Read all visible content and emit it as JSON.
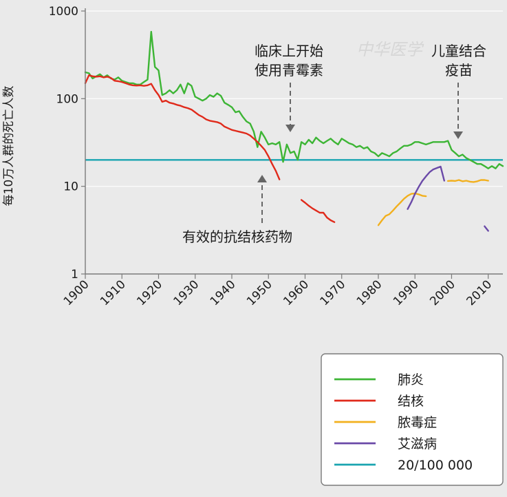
{
  "chart_data": {
    "type": "line",
    "ylabel": "每10万人群的死亡人数",
    "xlabel": "",
    "yscale": "log",
    "ylim": [
      1,
      1000
    ],
    "xlim": [
      1900,
      2014
    ],
    "y_ticks": [
      "1",
      "10",
      "100",
      "1000"
    ],
    "y_tick_values": [
      1,
      10,
      100,
      1000
    ],
    "x_ticks": [
      "1900",
      "1910",
      "1920",
      "1930",
      "1940",
      "1950",
      "1960",
      "1970",
      "1980",
      "1990",
      "2000",
      "2010"
    ],
    "x_tick_values": [
      1900,
      1910,
      1920,
      1930,
      1940,
      1950,
      1960,
      1970,
      1980,
      1990,
      2000,
      2010
    ],
    "grid": "horizontal",
    "legend_position": "bottom-right",
    "reference_line": {
      "label": "20/100 000",
      "value": 20,
      "color": "#19a4b0"
    },
    "annotations": [
      {
        "lines": [
          "临床上开始",
          "使用青霉素"
        ],
        "x": 1955,
        "arrow": "down"
      },
      {
        "lines": [
          "儿童结合",
          "疫苗"
        ],
        "x": 2002,
        "arrow": "down"
      },
      {
        "lines": [
          "有效的抗结核药物"
        ],
        "x": 1948,
        "arrow": "up"
      }
    ],
    "watermark": "中华医学",
    "series": [
      {
        "name": "肺炎",
        "color": "#3db535",
        "segments": [
          [
            [
              1900,
              200
            ],
            [
              1901,
              195
            ],
            [
              1902,
              170
            ],
            [
              1903,
              180
            ],
            [
              1904,
              190
            ],
            [
              1905,
              175
            ],
            [
              1906,
              185
            ],
            [
              1907,
              170
            ],
            [
              1908,
              165
            ],
            [
              1909,
              175
            ],
            [
              1910,
              160
            ],
            [
              1911,
              155
            ],
            [
              1912,
              150
            ],
            [
              1913,
              150
            ],
            [
              1914,
              145
            ],
            [
              1915,
              145
            ],
            [
              1916,
              155
            ],
            [
              1917,
              165
            ],
            [
              1918,
              580
            ],
            [
              1919,
              230
            ],
            [
              1920,
              210
            ],
            [
              1921,
              110
            ],
            [
              1922,
              115
            ],
            [
              1923,
              125
            ],
            [
              1924,
              115
            ],
            [
              1925,
              125
            ],
            [
              1926,
              145
            ],
            [
              1927,
              115
            ],
            [
              1928,
              150
            ],
            [
              1929,
              140
            ],
            [
              1930,
              105
            ],
            [
              1931,
              100
            ],
            [
              1932,
              95
            ],
            [
              1933,
              100
            ],
            [
              1934,
              110
            ],
            [
              1935,
              105
            ],
            [
              1936,
              115
            ],
            [
              1937,
              108
            ],
            [
              1938,
              90
            ],
            [
              1939,
              85
            ],
            [
              1940,
              80
            ],
            [
              1941,
              70
            ],
            [
              1942,
              72
            ],
            [
              1943,
              62
            ],
            [
              1944,
              55
            ],
            [
              1945,
              52
            ],
            [
              1946,
              42
            ],
            [
              1947,
              28
            ],
            [
              1948,
              42
            ],
            [
              1949,
              36
            ],
            [
              1950,
              30
            ],
            [
              1951,
              31
            ],
            [
              1952,
              30
            ],
            [
              1953,
              32
            ],
            [
              1954,
              19
            ],
            [
              1955,
              30
            ],
            [
              1956,
              24
            ],
            [
              1957,
              25
            ],
            [
              1958,
              20
            ],
            [
              1959,
              32
            ],
            [
              1960,
              30
            ],
            [
              1961,
              34
            ],
            [
              1962,
              31
            ],
            [
              1963,
              36
            ],
            [
              1964,
              33
            ],
            [
              1965,
              31
            ],
            [
              1966,
              33
            ],
            [
              1967,
              35
            ],
            [
              1968,
              32
            ],
            [
              1969,
              30
            ],
            [
              1970,
              35
            ],
            [
              1971,
              33
            ],
            [
              1972,
              31
            ],
            [
              1973,
              30
            ],
            [
              1974,
              28
            ],
            [
              1975,
              29
            ],
            [
              1976,
              27
            ],
            [
              1977,
              28
            ],
            [
              1978,
              25
            ],
            [
              1979,
              24
            ],
            [
              1980,
              22
            ],
            [
              1981,
              24
            ],
            [
              1982,
              23
            ],
            [
              1983,
              22
            ],
            [
              1984,
              24
            ],
            [
              1985,
              25
            ],
            [
              1986,
              27
            ],
            [
              1987,
              29
            ],
            [
              1988,
              29
            ],
            [
              1989,
              30
            ],
            [
              1990,
              32
            ],
            [
              1991,
              32
            ],
            [
              1992,
              31
            ],
            [
              1993,
              30
            ],
            [
              1994,
              31
            ],
            [
              1995,
              32
            ],
            [
              1996,
              32
            ],
            [
              1997,
              32
            ],
            [
              1998,
              32
            ],
            [
              1999,
              33
            ],
            [
              2000,
              26
            ],
            [
              2001,
              24
            ],
            [
              2002,
              22
            ],
            [
              2003,
              23
            ],
            [
              2004,
              21
            ],
            [
              2005,
              20
            ],
            [
              2006,
              19
            ],
            [
              2007,
              18
            ],
            [
              2008,
              18
            ],
            [
              2009,
              17
            ],
            [
              2010,
              16
            ],
            [
              2011,
              17
            ],
            [
              2012,
              16
            ],
            [
              2013,
              18
            ],
            [
              2014,
              17
            ]
          ]
        ]
      },
      {
        "name": "结核",
        "color": "#e02a1b",
        "segments": [
          [
            [
              1900,
              150
            ],
            [
              1901,
              185
            ],
            [
              1902,
              180
            ],
            [
              1903,
              178
            ],
            [
              1904,
              180
            ],
            [
              1905,
              175
            ],
            [
              1906,
              178
            ],
            [
              1907,
              172
            ],
            [
              1908,
              160
            ],
            [
              1909,
              158
            ],
            [
              1910,
              155
            ],
            [
              1911,
              150
            ],
            [
              1912,
              145
            ],
            [
              1913,
              142
            ],
            [
              1914,
              141
            ],
            [
              1915,
              142
            ],
            [
              1916,
              140
            ],
            [
              1917,
              142
            ],
            [
              1918,
              148
            ],
            [
              1919,
              125
            ],
            [
              1920,
              110
            ],
            [
              1921,
              92
            ],
            [
              1922,
              95
            ],
            [
              1923,
              90
            ],
            [
              1924,
              88
            ],
            [
              1925,
              85
            ],
            [
              1926,
              83
            ],
            [
              1927,
              80
            ],
            [
              1928,
              78
            ],
            [
              1929,
              75
            ],
            [
              1930,
              70
            ],
            [
              1931,
              65
            ],
            [
              1932,
              62
            ],
            [
              1933,
              58
            ],
            [
              1934,
              56
            ],
            [
              1935,
              55
            ],
            [
              1936,
              54
            ],
            [
              1937,
              52
            ],
            [
              1938,
              48
            ],
            [
              1939,
              46
            ],
            [
              1940,
              44
            ],
            [
              1941,
              43
            ],
            [
              1942,
              42
            ],
            [
              1943,
              41
            ],
            [
              1944,
              40
            ],
            [
              1945,
              38
            ],
            [
              1946,
              35
            ],
            [
              1947,
              32
            ],
            [
              1948,
              29
            ],
            [
              1949,
              26
            ],
            [
              1950,
              22
            ],
            [
              1951,
              18
            ],
            [
              1952,
              15
            ],
            [
              1953,
              12
            ]
          ],
          [
            [
              1959,
              7
            ],
            [
              1960,
              6.5
            ],
            [
              1961,
              6
            ],
            [
              1962,
              5.6
            ],
            [
              1963,
              5.3
            ],
            [
              1964,
              5
            ],
            [
              1965,
              5
            ],
            [
              1966,
              4.4
            ],
            [
              1967,
              4.1
            ],
            [
              1968,
              3.9
            ]
          ]
        ]
      },
      {
        "name": "脓毒症",
        "color": "#f2b01e",
        "segments": [
          [
            [
              1980,
              3.6
            ],
            [
              1981,
              4.1
            ],
            [
              1982,
              4.6
            ],
            [
              1983,
              4.8
            ],
            [
              1984,
              5.3
            ],
            [
              1985,
              5.9
            ],
            [
              1986,
              6.5
            ],
            [
              1987,
              7.2
            ],
            [
              1988,
              7.8
            ],
            [
              1989,
              8.2
            ],
            [
              1990,
              8.3
            ],
            [
              1991,
              8.1
            ],
            [
              1992,
              7.8
            ],
            [
              1993,
              7.7
            ]
          ],
          [
            [
              1999,
              11.5
            ],
            [
              2000,
              11.6
            ],
            [
              2001,
              11.5
            ],
            [
              2002,
              11.8
            ],
            [
              2003,
              11.4
            ],
            [
              2004,
              11.6
            ],
            [
              2005,
              11.3
            ],
            [
              2006,
              11.2
            ],
            [
              2007,
              11.4
            ],
            [
              2008,
              11.8
            ],
            [
              2009,
              11.8
            ],
            [
              2010,
              11.6
            ]
          ]
        ]
      },
      {
        "name": "艾滋病",
        "color": "#6a49a8",
        "segments": [
          [
            [
              1988,
              5.5
            ],
            [
              1989,
              6.6
            ],
            [
              1990,
              8.2
            ],
            [
              1991,
              9.8
            ],
            [
              1992,
              11.5
            ],
            [
              1993,
              13
            ],
            [
              1994,
              14.5
            ],
            [
              1995,
              15.6
            ],
            [
              1996,
              16.2
            ],
            [
              1997,
              16.8
            ],
            [
              1998,
              11.6
            ]
          ],
          [
            [
              2009,
              3.5
            ],
            [
              2010,
              3.1
            ]
          ]
        ]
      }
    ],
    "legend": [
      {
        "label": "肺炎",
        "color": "#3db535"
      },
      {
        "label": "结核",
        "color": "#e02a1b"
      },
      {
        "label": "脓毒症",
        "color": "#f2b01e"
      },
      {
        "label": "艾滋病",
        "color": "#6a49a8"
      },
      {
        "label": "20/100 000",
        "color": "#19a4b0"
      }
    ]
  }
}
